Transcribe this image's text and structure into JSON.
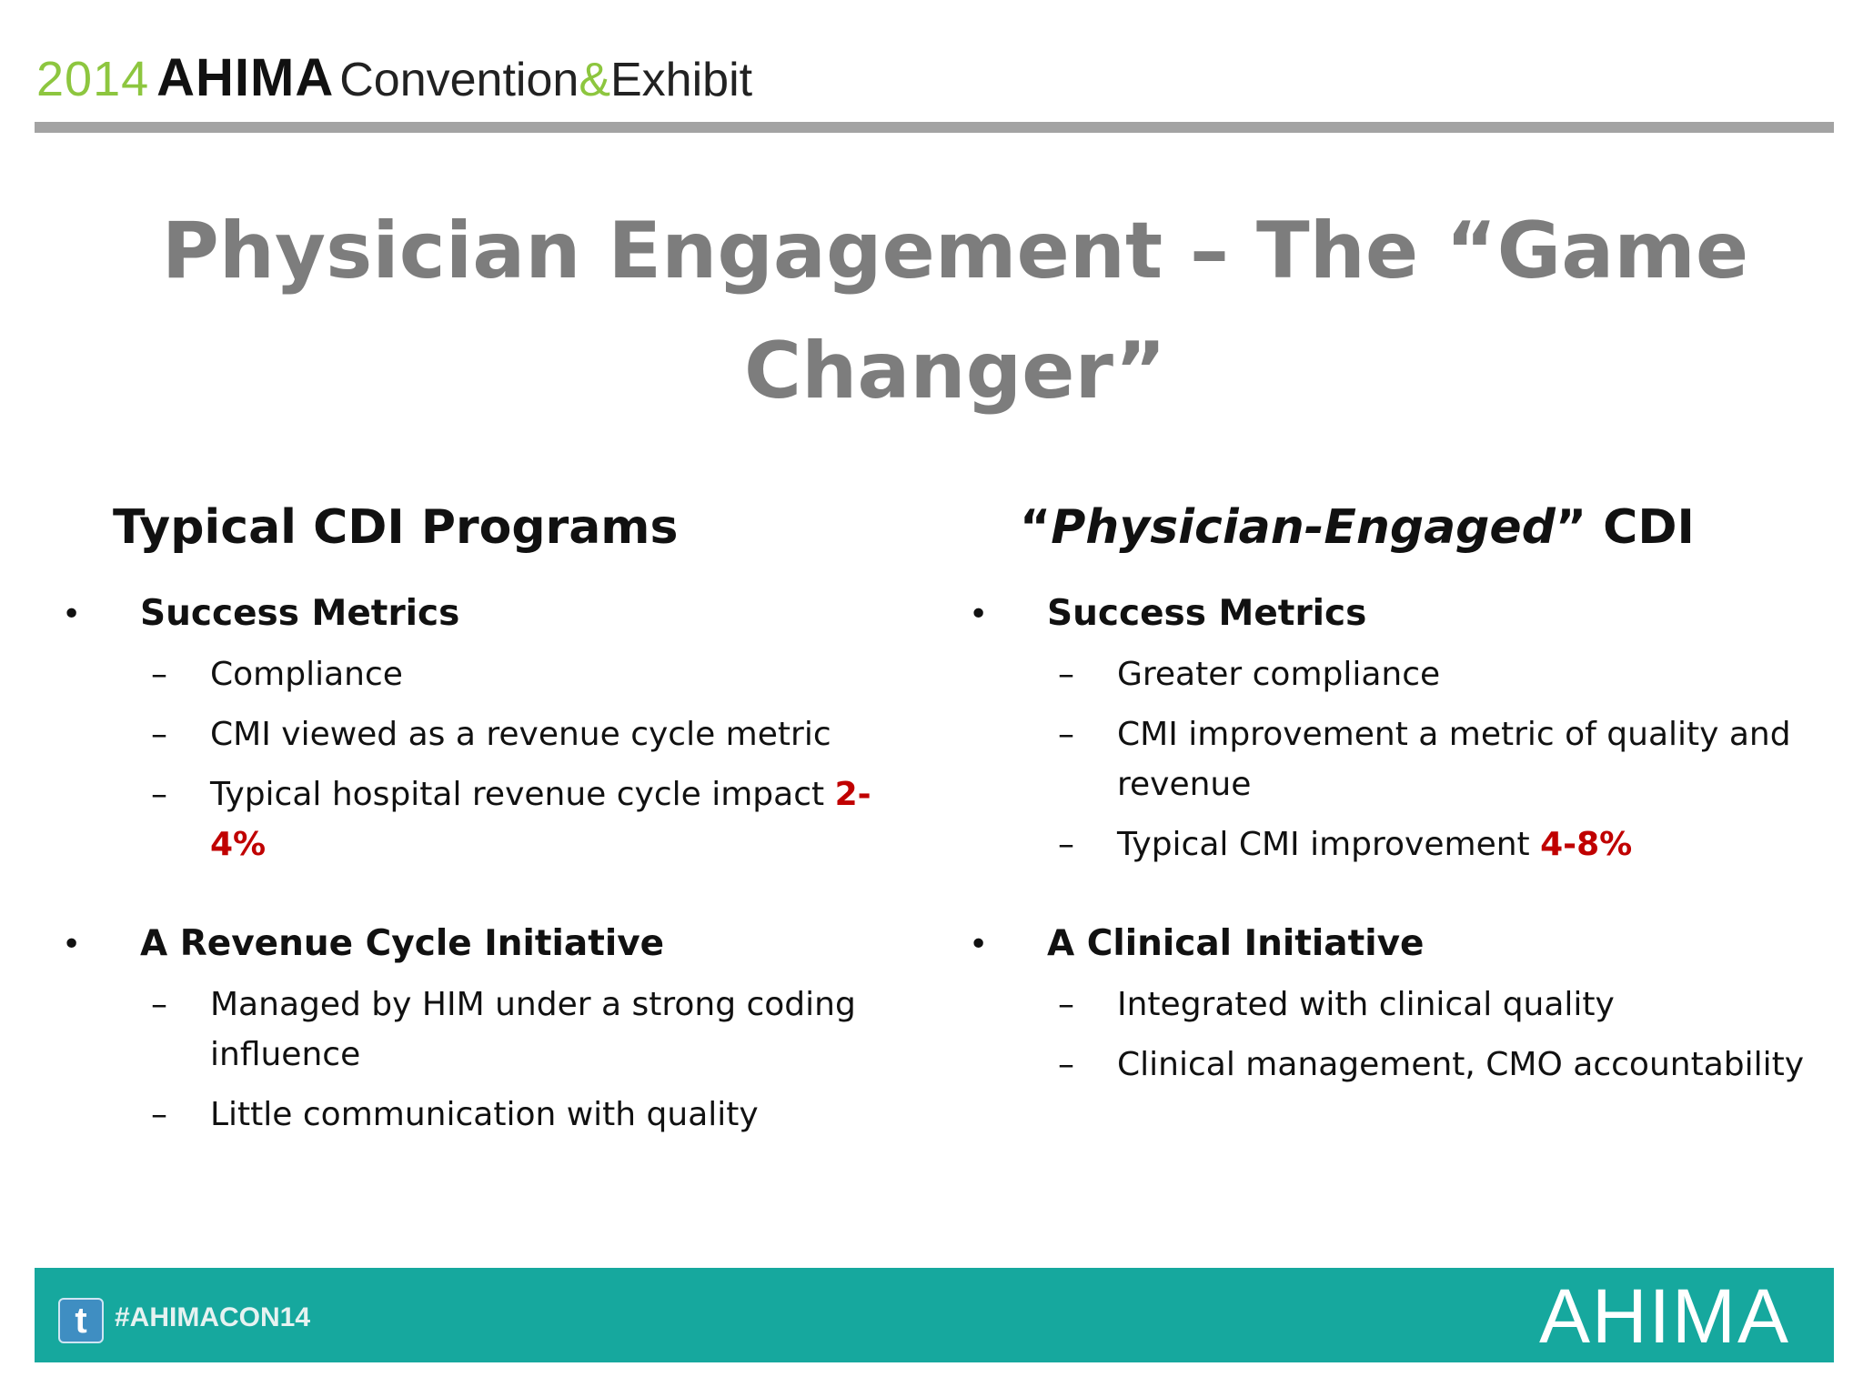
{
  "header": {
    "year": "2014",
    "name": "AHIMA",
    "convention": "Convention",
    "ampersand": "&",
    "exhibit": "Exhibit"
  },
  "slide": {
    "title": "Physician Engagement – The “Game Changer”"
  },
  "left": {
    "heading": "Typical CDI Programs",
    "sections": [
      {
        "label": "Success Metrics",
        "items": [
          {
            "text": "Compliance",
            "highlight": ""
          },
          {
            "text": "CMI viewed as a revenue cycle metric",
            "highlight": ""
          },
          {
            "text": "Typical hospital revenue cycle impact ",
            "highlight": "2-4%"
          }
        ]
      },
      {
        "label": "A Revenue Cycle Initiative",
        "items": [
          {
            "text": "Managed by HIM under a strong coding influence",
            "highlight": ""
          },
          {
            "text": "Little communication with quality",
            "highlight": ""
          }
        ]
      }
    ]
  },
  "right": {
    "heading_open": "“",
    "heading_italic": "Physician-Engaged",
    "heading_close": "” CDI",
    "sections": [
      {
        "label": "Success Metrics",
        "items": [
          {
            "text": "Greater compliance",
            "highlight": ""
          },
          {
            "text": "CMI improvement a metric of quality and revenue",
            "highlight": ""
          },
          {
            "text": "Typical CMI improvement ",
            "highlight": "4-8%"
          }
        ]
      },
      {
        "label": "A Clinical Initiative",
        "items": [
          {
            "text": "Integrated with clinical quality",
            "highlight": ""
          },
          {
            "text": "Clinical management, CMO accountability",
            "highlight": ""
          }
        ]
      }
    ]
  },
  "footer": {
    "hashtag": "#AHIMACON14",
    "twitter_icon": "twitter-icon",
    "logo_text": "AHIMA",
    "color": "#16a89e"
  },
  "colors": {
    "title_gray": "#7d7d7d",
    "accent_red": "#c00000",
    "green": "#8dc63f"
  }
}
